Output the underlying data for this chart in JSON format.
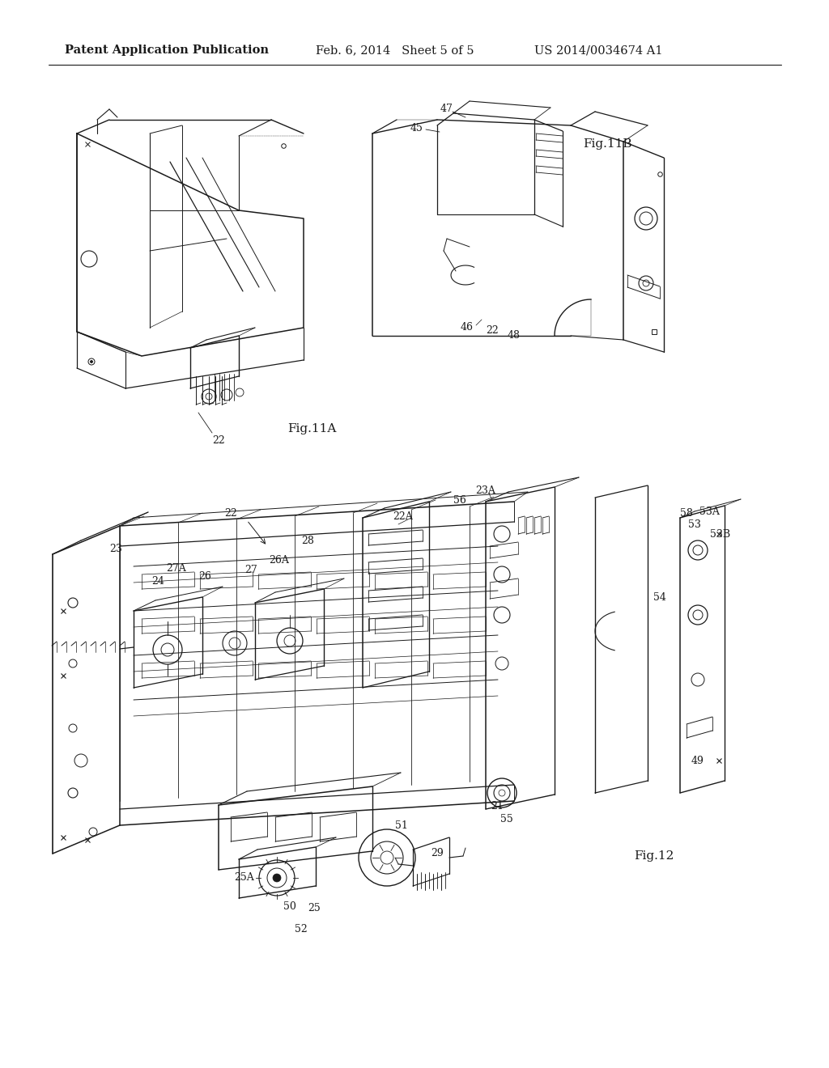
{
  "bg_color": "#ffffff",
  "header_left": "Patent Application Publication",
  "header_mid": "Feb. 6, 2014   Sheet 5 of 5",
  "header_right": "US 2014/0034674 A1",
  "header_fontsize": 10.5,
  "line_color": "#1a1a1a",
  "text_color": "#1a1a1a",
  "fig11a_label": "Fig.11A",
  "fig11b_label": "Fig.11B",
  "fig12_label": "Fig.12"
}
